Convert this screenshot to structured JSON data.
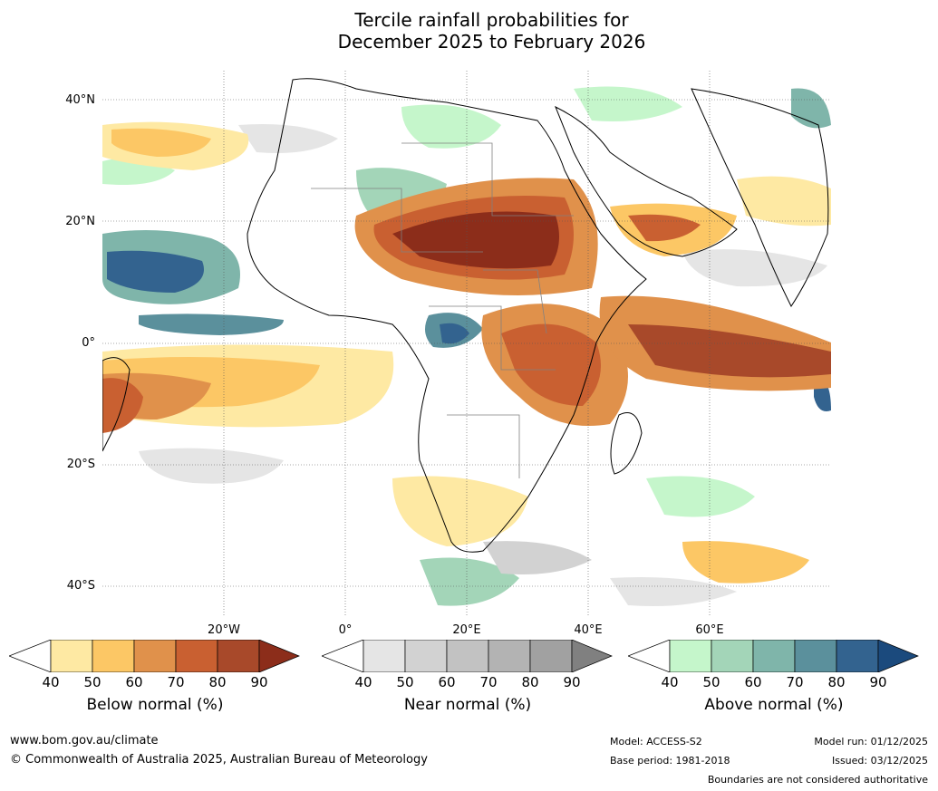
{
  "title": {
    "line1": "Tercile rainfall probabilities for",
    "line2": "December 2025 to February 2026"
  },
  "map": {
    "latitude_labels": [
      "40°N",
      "20°N",
      "0°",
      "20°S",
      "40°S"
    ],
    "longitude_labels": [
      "20°W",
      "0°",
      "20°E",
      "40°E",
      "60°E"
    ],
    "colors": {
      "ocean_bg": "#ffffff",
      "coastline": "#000000",
      "border": "#808080"
    }
  },
  "legends": [
    {
      "label": "Below normal (%)",
      "ticks": [
        "40",
        "50",
        "60",
        "70",
        "80",
        "90"
      ],
      "colors": [
        "#ffffff",
        "#fee9a3",
        "#fcc765",
        "#e0914b",
        "#c96031",
        "#a8492a",
        "#8c2d1a"
      ]
    },
    {
      "label": "Near normal (%)",
      "ticks": [
        "40",
        "50",
        "60",
        "70",
        "80",
        "90"
      ],
      "colors": [
        "#ffffff",
        "#e5e5e5",
        "#d2d2d2",
        "#c2c2c2",
        "#b3b3b3",
        "#a1a1a1",
        "#808080"
      ]
    },
    {
      "label": "Above normal (%)",
      "ticks": [
        "40",
        "50",
        "60",
        "70",
        "80",
        "90"
      ],
      "colors": [
        "#ffffff",
        "#c5f6cb",
        "#a3d5b8",
        "#7fb5aa",
        "#5b909c",
        "#33638f",
        "#1b4a7d"
      ]
    }
  ],
  "footer": {
    "website": "www.bom.gov.au/climate",
    "copyright": "© Commonwealth of Australia 2025, Australian Bureau of Meteorology",
    "model": "Model: ACCESS-S2",
    "base_period": "Base period: 1981-2018",
    "model_run": "Model run: 01/12/2025",
    "issued": "Issued: 03/12/2025",
    "disclaimer": "Boundaries are not considered authoritative"
  }
}
